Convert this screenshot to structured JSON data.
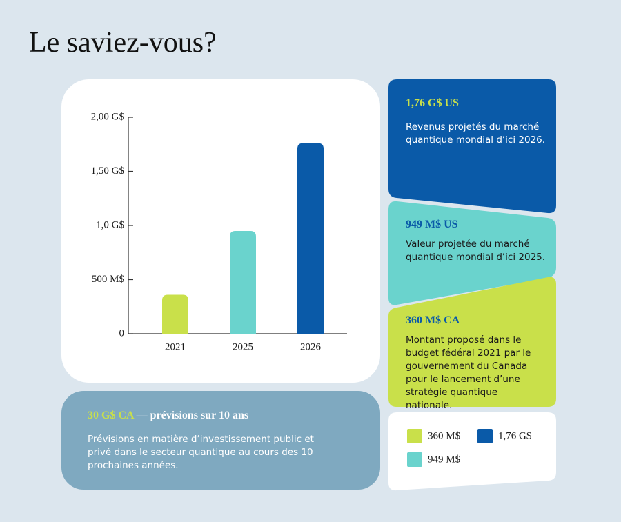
{
  "title": "Le saviez-vous?",
  "chart_data": {
    "type": "bar",
    "categories": [
      "2021",
      "2025",
      "2026"
    ],
    "series": [
      {
        "name": "360 M$",
        "color": "#c9e04a",
        "values": [
          360,
          null,
          null
        ]
      },
      {
        "name": "1,76 G$",
        "color": "#0a5aa8",
        "values": [
          null,
          null,
          1760
        ]
      },
      {
        "name": "949 M$",
        "color": "#6ad3cd",
        "values": [
          null,
          949,
          null
        ]
      }
    ],
    "ylim": [
      0,
      2000
    ],
    "yticks": [
      0,
      {
        "value": 500,
        "label": "500 M$"
      },
      {
        "value": 1000,
        "label": "1,0 G$"
      },
      {
        "value": 1500,
        "label": "1,50 G$"
      },
      {
        "value": 2000,
        "label": "2,00 G$"
      }
    ],
    "grid": false
  },
  "cards": [
    {
      "amount": "1,76 G$ US",
      "text": "Revenus projetés du marché quantique mondial d’ici 2026."
    },
    {
      "amount": "949 M$ US",
      "text": "Valeur projetée du marché quantique mondial d’ici 2025."
    },
    {
      "amount": "360 M$ CA",
      "text": "Montant proposé dans le budget fédéral 2021 par le gouvernement du Canada pour le lancement d’une stratégie quantique nationale."
    }
  ],
  "forecast": {
    "amount": "30 G$ CA",
    "heading": "— prévisions sur 10 ans",
    "text": "Prévisions en matière d’investissement public et privé dans le secteur quantique au cours des 10 prochaines années."
  }
}
